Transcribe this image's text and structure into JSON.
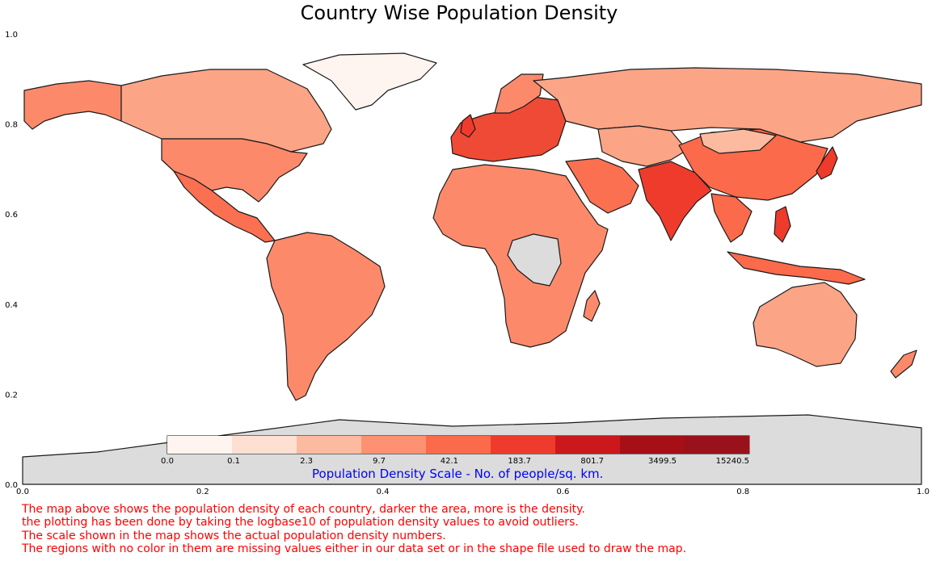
{
  "title": "Country Wise Population Density",
  "axes": {
    "x_ticks": [
      "0.0",
      "0.2",
      "0.4",
      "0.6",
      "0.8",
      "1.0"
    ],
    "y_ticks": [
      "0.0",
      "0.2",
      "0.4",
      "0.6",
      "0.8",
      "1.0"
    ]
  },
  "colorbar": {
    "title": "Population Density Scale - No. of people/sq. km.",
    "tick_labels": [
      "0.0",
      "0.1",
      "2.3",
      "9.7",
      "42.1",
      "183.7",
      "801.7",
      "3499.5",
      "15240.5"
    ],
    "colors": [
      "#fff5f0",
      "#fee0d2",
      "#fcbba1",
      "#fc9272",
      "#fb6a4a",
      "#ef3b2c",
      "#cb181d",
      "#a50f15",
      "#99111a"
    ]
  },
  "legend_colors": {
    "missing": "#dcdcdc",
    "border": "#1a1a1a"
  },
  "notes": [
    "The map above shows the population density of each country, darker the area, more is the density.",
    "the plotting has been done by taking the logbase10 of population density values to avoid outliers.",
    "The scale shown in the map shows the actual population density numbers.",
    "The regions with no color in them are missing values either in our data set or in the shape file used to draw the map."
  ]
}
